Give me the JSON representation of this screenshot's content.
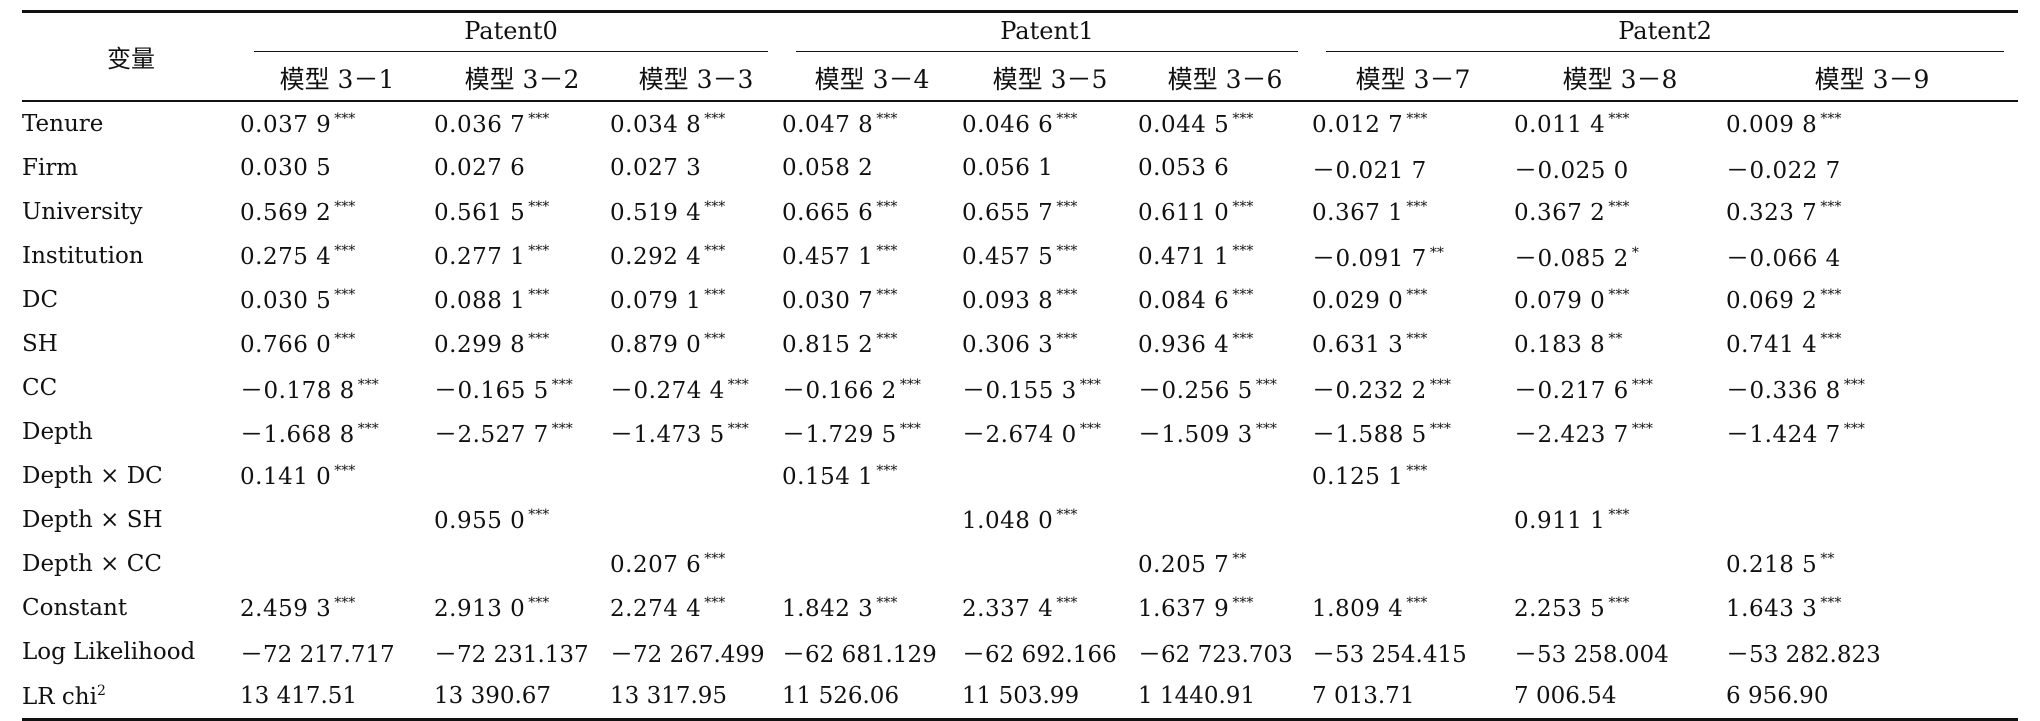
{
  "header": {
    "var_label": "变量",
    "groups": [
      "Patent0",
      "Patent1",
      "Patent2"
    ],
    "models": [
      "模型 3－1",
      "模型 3－2",
      "模型 3－3",
      "模型 3－4",
      "模型 3－5",
      "模型 3－6",
      "模型 3－7",
      "模型 3－8",
      "模型 3－9"
    ]
  },
  "rows": [
    {
      "name": "Tenure",
      "cells": [
        {
          "v": "0.037 9",
          "s": "***"
        },
        {
          "v": "0.036 7",
          "s": "***"
        },
        {
          "v": "0.034 8",
          "s": "***"
        },
        {
          "v": "0.047 8",
          "s": "***"
        },
        {
          "v": "0.046 6",
          "s": "***"
        },
        {
          "v": "0.044 5",
          "s": "***"
        },
        {
          "v": "0.012 7",
          "s": "***"
        },
        {
          "v": "0.011 4",
          "s": "***"
        },
        {
          "v": "0.009 8",
          "s": "***"
        }
      ]
    },
    {
      "name": "Firm",
      "cells": [
        {
          "v": "0.030 5",
          "s": ""
        },
        {
          "v": "0.027 6",
          "s": ""
        },
        {
          "v": "0.027 3",
          "s": ""
        },
        {
          "v": "0.058 2",
          "s": ""
        },
        {
          "v": "0.056 1",
          "s": ""
        },
        {
          "v": "0.053 6",
          "s": ""
        },
        {
          "v": "－0.021 7",
          "s": ""
        },
        {
          "v": "－0.025 0",
          "s": ""
        },
        {
          "v": "－0.022 7",
          "s": ""
        }
      ]
    },
    {
      "name": "University",
      "cells": [
        {
          "v": "0.569 2",
          "s": "***"
        },
        {
          "v": "0.561 5",
          "s": "***"
        },
        {
          "v": "0.519 4",
          "s": "***"
        },
        {
          "v": "0.665 6",
          "s": "***"
        },
        {
          "v": "0.655 7",
          "s": "***"
        },
        {
          "v": "0.611 0",
          "s": "***"
        },
        {
          "v": "0.367 1",
          "s": "***"
        },
        {
          "v": "0.367 2",
          "s": "***"
        },
        {
          "v": "0.323 7",
          "s": "***"
        }
      ]
    },
    {
      "name": "Institution",
      "cells": [
        {
          "v": "0.275 4",
          "s": "***"
        },
        {
          "v": "0.277 1",
          "s": "***"
        },
        {
          "v": "0.292 4",
          "s": "***"
        },
        {
          "v": "0.457 1",
          "s": "***"
        },
        {
          "v": "0.457 5",
          "s": "***"
        },
        {
          "v": "0.471 1",
          "s": "***"
        },
        {
          "v": "－0.091 7",
          "s": "**"
        },
        {
          "v": "－0.085 2",
          "s": "*"
        },
        {
          "v": "－0.066 4",
          "s": ""
        }
      ]
    },
    {
      "name": "DC",
      "cells": [
        {
          "v": "0.030 5",
          "s": "***"
        },
        {
          "v": "0.088 1",
          "s": "***"
        },
        {
          "v": "0.079 1",
          "s": "***"
        },
        {
          "v": "0.030 7",
          "s": "***"
        },
        {
          "v": "0.093 8",
          "s": "***"
        },
        {
          "v": "0.084 6",
          "s": "***"
        },
        {
          "v": "0.029 0",
          "s": "***"
        },
        {
          "v": "0.079 0",
          "s": "***"
        },
        {
          "v": "0.069 2",
          "s": "***"
        }
      ]
    },
    {
      "name": "SH",
      "cells": [
        {
          "v": "0.766 0",
          "s": "***"
        },
        {
          "v": "0.299 8",
          "s": "***"
        },
        {
          "v": "0.879 0",
          "s": "***"
        },
        {
          "v": "0.815 2",
          "s": "***"
        },
        {
          "v": "0.306 3",
          "s": "***"
        },
        {
          "v": "0.936 4",
          "s": "***"
        },
        {
          "v": "0.631 3",
          "s": "***"
        },
        {
          "v": "0.183 8",
          "s": "**"
        },
        {
          "v": "0.741 4",
          "s": "***"
        }
      ]
    },
    {
      "name": "CC",
      "cells": [
        {
          "v": "－0.178 8",
          "s": "***"
        },
        {
          "v": "－0.165 5",
          "s": "***"
        },
        {
          "v": "－0.274 4",
          "s": "***"
        },
        {
          "v": "－0.166 2",
          "s": "***"
        },
        {
          "v": "－0.155 3",
          "s": "***"
        },
        {
          "v": "－0.256 5",
          "s": "***"
        },
        {
          "v": "－0.232 2",
          "s": "***"
        },
        {
          "v": "－0.217 6",
          "s": "***"
        },
        {
          "v": "－0.336 8",
          "s": "***"
        }
      ]
    },
    {
      "name": "Depth",
      "cells": [
        {
          "v": "－1.668 8",
          "s": "***"
        },
        {
          "v": "－2.527 7",
          "s": "***"
        },
        {
          "v": "－1.473 5",
          "s": "***"
        },
        {
          "v": "－1.729 5",
          "s": "***"
        },
        {
          "v": "－2.674 0",
          "s": "***"
        },
        {
          "v": "－1.509 3",
          "s": "***"
        },
        {
          "v": "－1.588 5",
          "s": "***"
        },
        {
          "v": "－2.423 7",
          "s": "***"
        },
        {
          "v": "－1.424 7",
          "s": "***"
        }
      ]
    },
    {
      "name": "Depth × DC",
      "cells": [
        {
          "v": "0.141 0",
          "s": "***"
        },
        {
          "v": "",
          "s": ""
        },
        {
          "v": "",
          "s": ""
        },
        {
          "v": "0.154 1",
          "s": "***"
        },
        {
          "v": "",
          "s": ""
        },
        {
          "v": "",
          "s": ""
        },
        {
          "v": "0.125 1",
          "s": "***"
        },
        {
          "v": "",
          "s": ""
        },
        {
          "v": "",
          "s": ""
        }
      ]
    },
    {
      "name": "Depth × SH",
      "cells": [
        {
          "v": "",
          "s": ""
        },
        {
          "v": "0.955 0",
          "s": "***"
        },
        {
          "v": "",
          "s": ""
        },
        {
          "v": "",
          "s": ""
        },
        {
          "v": "1.048 0",
          "s": "***"
        },
        {
          "v": "",
          "s": ""
        },
        {
          "v": "",
          "s": ""
        },
        {
          "v": "0.911 1",
          "s": "***"
        },
        {
          "v": "",
          "s": ""
        }
      ]
    },
    {
      "name": "Depth × CC",
      "cells": [
        {
          "v": "",
          "s": ""
        },
        {
          "v": "",
          "s": ""
        },
        {
          "v": "0.207 6",
          "s": "***"
        },
        {
          "v": "",
          "s": ""
        },
        {
          "v": "",
          "s": ""
        },
        {
          "v": "0.205 7",
          "s": "**"
        },
        {
          "v": "",
          "s": ""
        },
        {
          "v": "",
          "s": ""
        },
        {
          "v": "0.218 5",
          "s": "**"
        }
      ]
    },
    {
      "name": "Constant",
      "cells": [
        {
          "v": "2.459 3",
          "s": "***"
        },
        {
          "v": "2.913 0",
          "s": "***"
        },
        {
          "v": "2.274 4",
          "s": "***"
        },
        {
          "v": "1.842 3",
          "s": "***"
        },
        {
          "v": "2.337 4",
          "s": "***"
        },
        {
          "v": "1.637 9",
          "s": "***"
        },
        {
          "v": "1.809 4",
          "s": "***"
        },
        {
          "v": "2.253 5",
          "s": "***"
        },
        {
          "v": "1.643 3",
          "s": "***"
        }
      ]
    }
  ],
  "stats": [
    {
      "name": "Log Likelihood",
      "sup": "",
      "values": [
        "－72 217.717",
        "－72 231.137",
        "－72 267.499",
        "－62 681.129",
        "－62 692.166",
        "－62 723.703",
        "－53 254.415",
        "－53 258.004",
        "－53 282.823"
      ]
    },
    {
      "name": "LR chi",
      "sup": "2",
      "values": [
        "13 417.51",
        "13 390.67",
        "13 317.95",
        "11 526.06",
        "11 503.99",
        "1 1440.91",
        "7 013.71",
        "7 006.54",
        "6 956.90"
      ]
    }
  ]
}
